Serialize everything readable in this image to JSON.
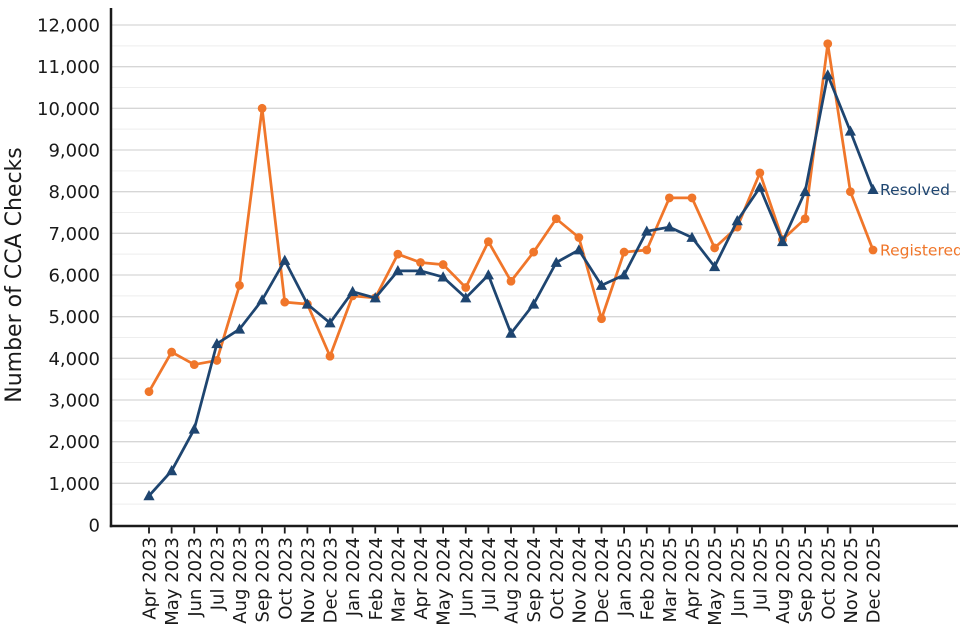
{
  "chart_data": {
    "type": "line",
    "title": "",
    "ylabel": "Number of CCA Checks",
    "xlabel": "",
    "ylim": [
      0,
      12000
    ],
    "ytick_interval": 1000,
    "minor_ytick_interval": 500,
    "grid": "horizontal major and minor, no vertical gridlines",
    "legend_position": "labels at right end of each line",
    "ytick_labels": [
      "0",
      "1,000",
      "2,000",
      "3,000",
      "4,000",
      "5,000",
      "6,000",
      "7,000",
      "8,000",
      "9,000",
      "10,000",
      "11,000",
      "12,000"
    ],
    "categories": [
      "Apr 2023",
      "May 2023",
      "Jun 2023",
      "Jul 2023",
      "Aug 2023",
      "Sep 2023",
      "Oct 2023",
      "Nov 2023",
      "Dec 2023",
      "Jan 2024",
      "Feb 2024",
      "Mar 2024",
      "Apr 2024",
      "May 2024",
      "Jun 2024",
      "Jul 2024",
      "Aug 2024",
      "Sep 2024",
      "Oct 2024",
      "Nov 2024",
      "Dec 2024",
      "Jan 2025",
      "Feb 2025",
      "Mar 2025",
      "Apr 2025",
      "May 2025",
      "Jun 2025",
      "Jul 2025",
      "Aug 2025",
      "Sep 2025",
      "Oct 2025",
      "Nov 2025",
      "Dec 2025"
    ],
    "series": [
      {
        "name": "Resolved",
        "marker": "triangle",
        "color": "#1e4570",
        "values": [
          700,
          1300,
          2300,
          4350,
          4700,
          5400,
          6350,
          5300,
          4850,
          5600,
          5450,
          6100,
          6100,
          5950,
          5450,
          6000,
          4600,
          5300,
          6300,
          6600,
          5750,
          6000,
          7050,
          7150,
          6900,
          6200,
          7300,
          8100,
          6800,
          8000,
          10800,
          9450,
          8050
        ]
      },
      {
        "name": "Registered",
        "marker": "circle",
        "color": "#f0762a",
        "values": [
          3200,
          4150,
          3850,
          3950,
          5750,
          10000,
          5350,
          5300,
          4050,
          5500,
          5450,
          6500,
          6300,
          6250,
          5700,
          6800,
          5850,
          6550,
          7350,
          6900,
          4950,
          6550,
          6600,
          7850,
          7850,
          6650,
          7150,
          8450,
          6850,
          7350,
          11550,
          8000,
          6600
        ]
      }
    ]
  },
  "styles": {
    "axis_color": "#1a1a1a",
    "tick_label_color": "#1a1a1a",
    "major_grid_color": "#d6d6d6",
    "minor_grid_color": "#eeeeee",
    "background": "#ffffff"
  }
}
